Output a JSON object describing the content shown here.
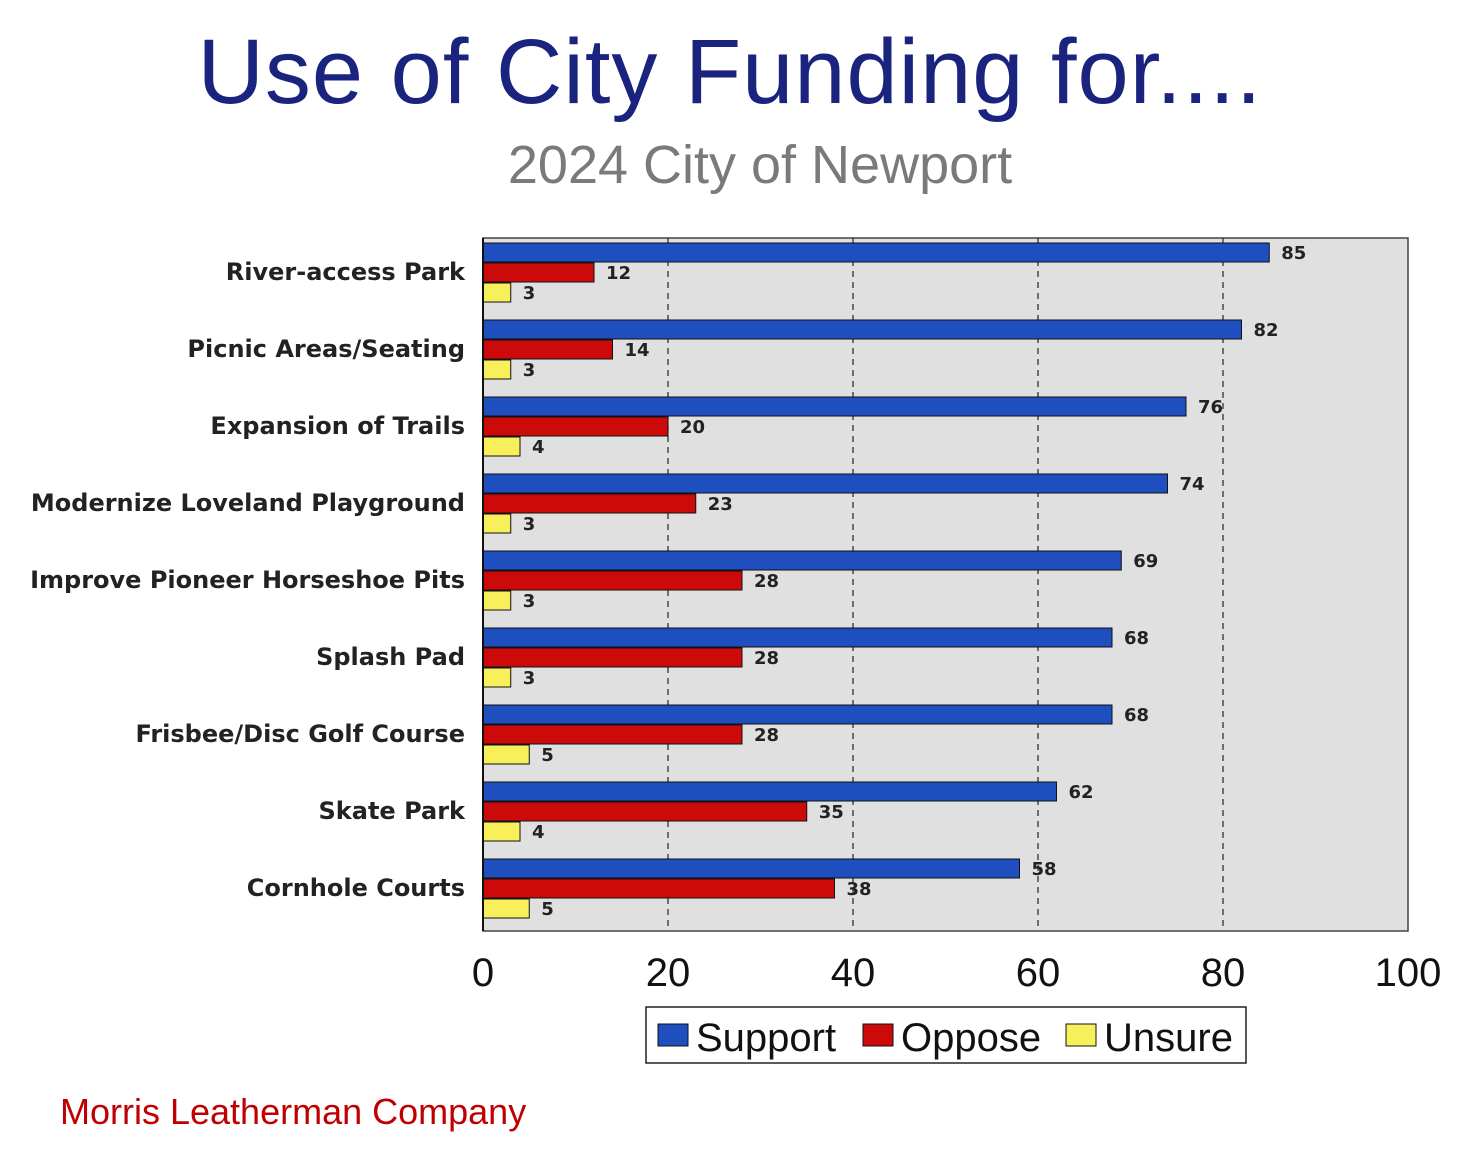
{
  "title": "Use of City Funding for....",
  "subtitle": "2024 City of Newport",
  "footer": "Morris Leatherman Company",
  "chart_data": {
    "type": "bar",
    "orientation": "horizontal",
    "categories": [
      "River-access Park",
      "Picnic Areas/Seating",
      "Expansion of Trails",
      "Modernize Loveland Playground",
      "Improve Pioneer Horseshoe Pits",
      "Splash Pad",
      "Frisbee/Disc Golf Course",
      "Skate Park",
      "Cornhole Courts"
    ],
    "series": [
      {
        "name": "Support",
        "color": "#1f4fbf",
        "values": [
          85,
          82,
          76,
          74,
          69,
          68,
          68,
          62,
          58
        ]
      },
      {
        "name": "Oppose",
        "color": "#cc0a0a",
        "values": [
          12,
          14,
          20,
          23,
          28,
          28,
          28,
          35,
          38
        ]
      },
      {
        "name": "Unsure",
        "color": "#f7f05a",
        "values": [
          3,
          3,
          4,
          3,
          3,
          3,
          5,
          4,
          5
        ]
      }
    ],
    "xlim": [
      0,
      100
    ],
    "xticks": [
      0,
      20,
      40,
      60,
      80,
      100
    ],
    "grid": "vertical-dashed",
    "plot_background": "#e0e0e0",
    "legend_position": "bottom-center"
  }
}
